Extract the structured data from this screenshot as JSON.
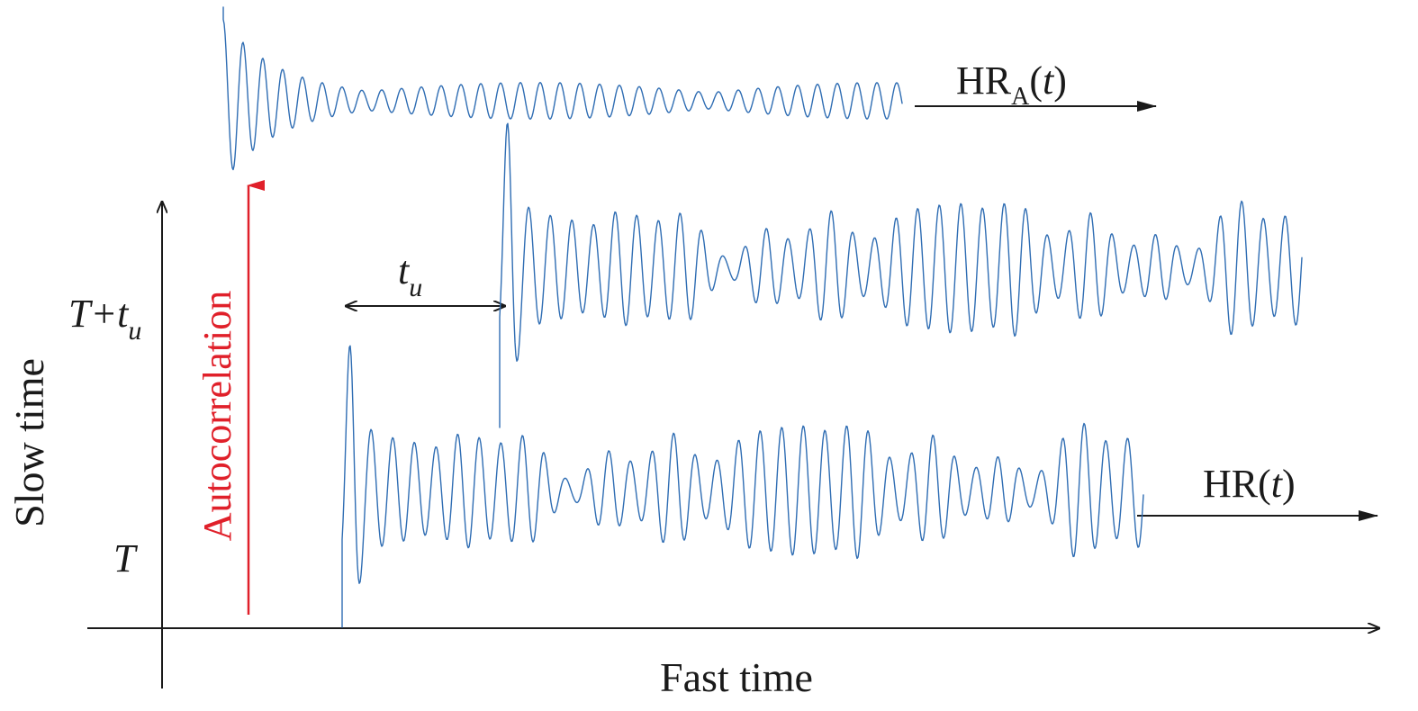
{
  "colors": {
    "signal": "#2f6db3",
    "axis": "#1a1a1a",
    "autocorrelation": "#e0202a"
  },
  "labels": {
    "x_axis": "Fast time",
    "y_axis": "Slow time",
    "tick_T": "T",
    "tick_T_plus_tu_main": "T+t",
    "tick_T_plus_tu_sub": "u",
    "autocorrelation": "Autocorrelation",
    "delay_main": "t",
    "delay_sub": "u",
    "hr": {
      "prefix": "HR(",
      "var": "t",
      "suffix": ")"
    },
    "hra": {
      "prefix": "HR",
      "sub": "A",
      "open": "(",
      "var": "t",
      "close": ")"
    }
  }
}
